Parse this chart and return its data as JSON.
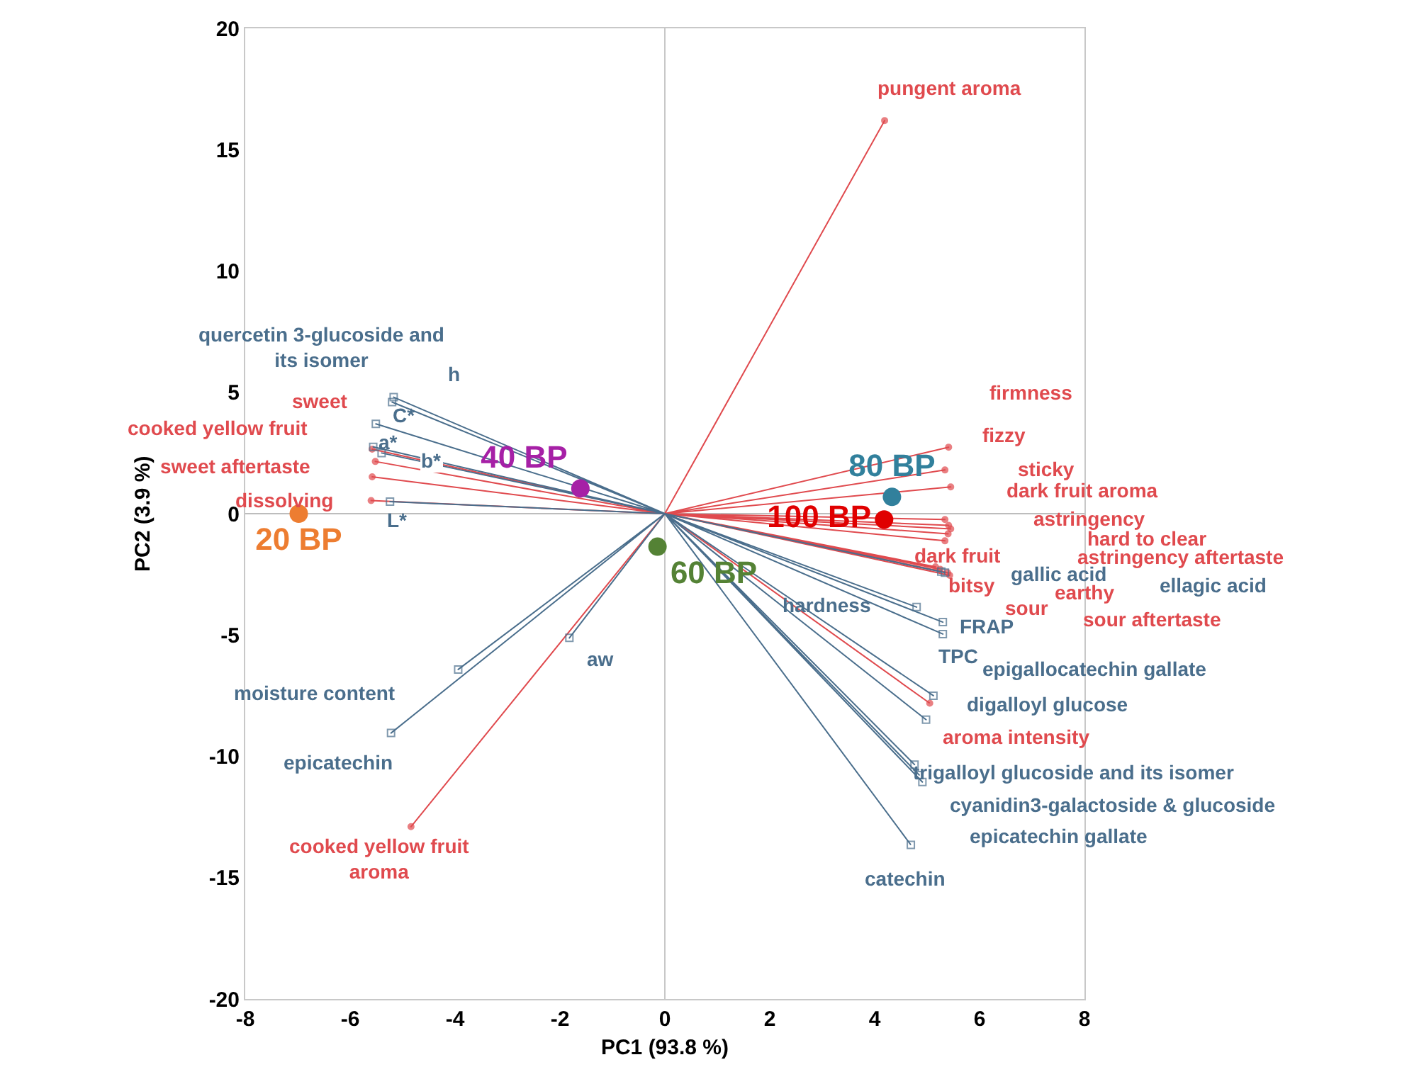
{
  "chart_data": {
    "type": "scatter",
    "xlabel": "PC1 (93.8 %)",
    "ylabel": "PC2 (3.9 %)",
    "xlim": [
      -8,
      8
    ],
    "xticks": [
      -8,
      -6,
      -4,
      -2,
      0,
      2,
      4,
      6,
      8
    ],
    "ylim": [
      -20,
      20
    ],
    "yticks": [
      -20,
      -15,
      -10,
      -5,
      0,
      5,
      10,
      15,
      20
    ],
    "ref_lines": [
      {
        "axis": "x",
        "value": 0,
        "color": "#c8c8c8"
      },
      {
        "axis": "y",
        "value": 0,
        "color": "#bdbdbd"
      }
    ],
    "series": [
      {
        "name": "20 BP",
        "color": "#ed7d31",
        "marker": "circle",
        "x": [
          -6.98
        ],
        "values": [
          0
        ]
      },
      {
        "name": "40 BP",
        "color": "#a620a6",
        "marker": "circle",
        "x": [
          -1.61
        ],
        "values": [
          1.04
        ]
      },
      {
        "name": "60 BP",
        "color": "#548235",
        "marker": "circle",
        "x": [
          -0.14
        ],
        "values": [
          -1.36
        ]
      },
      {
        "name": "80 BP",
        "color": "#31809c",
        "marker": "circle",
        "x": [
          4.33
        ],
        "values": [
          0.69
        ]
      },
      {
        "name": "100 BP",
        "color": "#e00000",
        "marker": "circle",
        "x": [
          4.18
        ],
        "values": [
          -0.24
        ]
      },
      {
        "type": "line",
        "color": "#e04a4e",
        "marker": "circle",
        "x": [
          0,
          4.19,
          0,
          -5.58,
          0,
          -5.52,
          0,
          -5.58,
          0,
          -5.6,
          0,
          -4.84,
          0,
          5.41,
          0,
          5.34,
          0,
          5.45,
          0,
          5.34,
          0,
          5.41,
          0,
          5.45,
          0,
          5.4,
          0,
          5.34,
          0,
          5.16,
          0,
          5.25,
          0,
          5.39,
          0,
          5.43,
          0,
          5.05
        ],
        "values": [
          0,
          16.2,
          0,
          2.66,
          0,
          2.15,
          0,
          1.52,
          0,
          0.54,
          0,
          -12.9,
          0,
          2.74,
          0,
          1.8,
          0,
          1.1,
          0,
          -0.24,
          0,
          -0.48,
          0,
          -0.63,
          0,
          -0.83,
          0,
          -1.12,
          0,
          -2.19,
          0,
          -2.29,
          0,
          -2.43,
          0,
          -2.54,
          0,
          -7.81
        ]
      },
      {
        "type": "line",
        "color": "#4a6e8c",
        "marker": "square",
        "x": [
          0,
          -5.2,
          0,
          -5.17,
          0,
          -5.51,
          0,
          -5.56,
          0,
          -5.4,
          0,
          -5.24,
          0,
          -3.94,
          0,
          -5.22,
          0,
          -1.82,
          0,
          5.27,
          0,
          5.34,
          0,
          4.8,
          0,
          5.3,
          0,
          5.3,
          0,
          5.12,
          0,
          4.98,
          0,
          4.76,
          0,
          4.91,
          0,
          4.85,
          0,
          4.69
        ],
        "values": [
          0,
          4.6,
          0,
          4.8,
          0,
          3.7,
          0,
          2.75,
          0,
          2.5,
          0,
          0.5,
          0,
          -6.42,
          0,
          -9.04,
          0,
          -5.12,
          0,
          -2.39,
          0,
          -2.43,
          0,
          -3.85,
          0,
          -4.47,
          0,
          -4.96,
          0,
          -7.5,
          0,
          -8.49,
          0,
          -10.34,
          0,
          -11.06,
          0,
          -10.77,
          0,
          -13.65
        ]
      }
    ],
    "annotations": [
      "pungent aroma",
      "sweet",
      "cooked yellow fruit",
      "sweet aftertaste",
      "dissolving",
      "cooked yellow fruit\naroma",
      "firmness",
      "fizzy",
      "sticky",
      "dark fruit aroma",
      "astringency",
      "hard to clear",
      "astringency aftertaste",
      "dark fruit",
      "bitsy",
      "earthy",
      "sour",
      "sour aftertaste",
      "aroma intensity",
      "quercetin 3-glucoside and\nits isomer",
      "h",
      "C*",
      "a*",
      "b*",
      "L*",
      "moisture content",
      "epicatechin",
      "aw",
      "gallic acid",
      "ellagic acid",
      "hardness",
      "FRAP",
      "TPC",
      "epigallocatechin gallate",
      "digalloyl glucose",
      "trigalloyl glucoside and its isomer",
      "cyanidin3-galactoside & glucoside",
      "epicatechin gallate",
      "catechin"
    ]
  }
}
